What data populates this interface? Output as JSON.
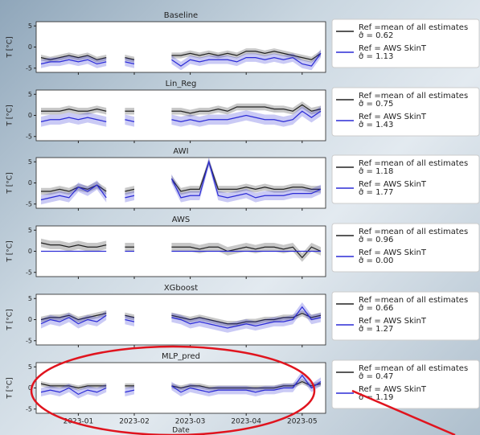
{
  "chart_data": [
    {
      "type": "line",
      "title": "Baseline",
      "ylabel": "T [°C]",
      "ylim": [
        -6,
        6
      ],
      "yticks": [
        -5,
        0,
        5
      ],
      "series": [
        {
          "name": "Ref =mean of all estimates",
          "stat": "σ̂ = 0.62",
          "color": "#222222",
          "band": 0.7,
          "values": [
            -2.5,
            -3,
            -2.5,
            -2,
            -2.5,
            -2,
            -3,
            -2.5,
            null,
            -2.5,
            -3,
            null,
            -2.5,
            null,
            -2,
            -2,
            -1.5,
            -2,
            -1.5,
            -2,
            -1.5,
            -2,
            -1,
            -1,
            -1.5,
            -1,
            -1.5,
            -2,
            -2.5,
            -3,
            -1.5
          ]
        },
        {
          "name": "Ref = AWS SkinT",
          "stat": "σ̂ = 1.13",
          "color": "#2b2bd6",
          "band": 1,
          "values": [
            -4,
            -3.5,
            -3.5,
            -3,
            -3.5,
            -3,
            -4,
            -3.5,
            null,
            -3.5,
            -4,
            null,
            -3.5,
            null,
            -3,
            -4.5,
            -3,
            -3.5,
            -3,
            -3,
            -3,
            -3.5,
            -2.5,
            -2.5,
            -3,
            -2.5,
            -3,
            -2.5,
            -4,
            -4.5,
            -1.5
          ]
        }
      ]
    },
    {
      "type": "line",
      "title": "Lin_Reg",
      "ylabel": "T [°C]",
      "ylim": [
        -6,
        6
      ],
      "yticks": [
        -5,
        0,
        5
      ],
      "series": [
        {
          "name": "Ref =mean of all estimates",
          "stat": "σ̂ = 0.75",
          "color": "#222222",
          "band": 0.8,
          "values": [
            1,
            1,
            1,
            1.5,
            1,
            1,
            1.5,
            1,
            null,
            1,
            1,
            null,
            1,
            null,
            1,
            1,
            0.5,
            1,
            1,
            1.5,
            1,
            2,
            2,
            2,
            2,
            1.5,
            1.5,
            1,
            2.5,
            1,
            1.5
          ]
        },
        {
          "name": "Ref = AWS SkinT",
          "stat": "σ̂ = 1.43",
          "color": "#2b2bd6",
          "band": 1.2,
          "values": [
            -1.5,
            -1,
            -1,
            -0.5,
            -1,
            -0.5,
            -1,
            -1.5,
            null,
            -1,
            -1.5,
            null,
            -1,
            null,
            -1,
            -1.5,
            -1,
            -1.5,
            -1,
            -1,
            -1,
            -0.5,
            0,
            -0.5,
            -1,
            -1,
            -1.5,
            -1,
            1,
            -0.5,
            1
          ]
        }
      ]
    },
    {
      "type": "line",
      "title": "AWI",
      "ylabel": "T [°C]",
      "ylim": [
        -6,
        6
      ],
      "yticks": [
        -5,
        0,
        5
      ],
      "series": [
        {
          "name": "Ref =mean of all estimates",
          "stat": "σ̂ = 1.18",
          "color": "#222222",
          "band": 0.8,
          "values": [
            -2,
            -2,
            -1.5,
            -2,
            -1,
            -1.5,
            -0.5,
            -2,
            null,
            -2,
            -1.5,
            null,
            -2,
            null,
            1,
            -2,
            -1.5,
            -1.5,
            5,
            -1.5,
            -1.5,
            -1.5,
            -1,
            -1.5,
            -1,
            -1.5,
            -1.5,
            -1,
            -1,
            -1.5,
            -1.5
          ]
        },
        {
          "name": "Ref = AWS SkinT",
          "stat": "σ̂ = 1.77",
          "color": "#2b2bd6",
          "band": 1.1,
          "values": [
            -4,
            -3.5,
            -3,
            -3.5,
            -1,
            -2,
            -0.5,
            -3.5,
            null,
            -3.5,
            -3,
            null,
            -3,
            null,
            1,
            -3.5,
            -3,
            -3,
            5,
            -3,
            -3.5,
            -3,
            -2.5,
            -3.5,
            -3,
            -3,
            -3,
            -2.5,
            -2.5,
            -2.5,
            -1.5
          ]
        }
      ]
    },
    {
      "type": "line",
      "title": "AWS",
      "ylabel": "T [°C]",
      "ylim": [
        -6,
        6
      ],
      "yticks": [
        -5,
        0,
        5
      ],
      "series": [
        {
          "name": "Ref =mean of all estimates",
          "stat": "σ̂ = 0.96",
          "color": "#222222",
          "band": 1,
          "values": [
            2,
            1.5,
            1.5,
            1,
            1.5,
            1,
            1,
            1.5,
            null,
            1,
            1,
            null,
            1,
            null,
            1,
            1,
            1,
            0.5,
            1,
            1,
            0,
            0.5,
            1,
            0.5,
            1,
            1,
            0.5,
            1,
            -1.5,
            1,
            0
          ]
        },
        {
          "name": "Ref = AWS SkinT",
          "stat": "σ̂ = 0.00",
          "color": "#2b2bd6",
          "band": 0,
          "values": [
            0,
            0,
            0,
            0,
            0,
            0,
            0,
            0,
            null,
            0,
            0,
            null,
            0,
            null,
            0,
            0,
            0,
            0,
            0,
            0,
            0,
            0,
            0,
            0,
            0,
            0,
            0,
            0,
            0,
            0,
            0
          ]
        }
      ]
    },
    {
      "type": "line",
      "title": "XGboost",
      "ylabel": "T [°C]",
      "ylim": [
        -6,
        6
      ],
      "yticks": [
        -5,
        0,
        5
      ],
      "series": [
        {
          "name": "Ref =mean of all estimates",
          "stat": "σ̂ = 0.66",
          "color": "#222222",
          "band": 0.7,
          "values": [
            0,
            0.5,
            0.5,
            1,
            0,
            0.5,
            1,
            1.5,
            null,
            1,
            0.5,
            null,
            1,
            null,
            1,
            0.5,
            0,
            0.5,
            0,
            -0.5,
            -1,
            -1,
            -0.5,
            -0.5,
            0,
            0,
            0.5,
            0.5,
            1.5,
            0.5,
            1
          ]
        },
        {
          "name": "Ref = AWS SkinT",
          "stat": "σ̂ = 1.27",
          "color": "#2b2bd6",
          "band": 1.1,
          "values": [
            -1,
            0,
            -0.5,
            0.5,
            -1,
            0,
            -0.5,
            1,
            null,
            0,
            -0.5,
            null,
            0.5,
            null,
            0.5,
            0,
            -1,
            -0.5,
            -1,
            -1.5,
            -2,
            -1.5,
            -1,
            -1.5,
            -1,
            -0.5,
            -0.5,
            0,
            3,
            0,
            0.5
          ]
        }
      ]
    },
    {
      "type": "line",
      "title": "MLP_pred",
      "ylabel": "T [°C]",
      "xlabel": "Date",
      "ylim": [
        -6,
        6
      ],
      "yticks": [
        -5,
        0,
        5
      ],
      "categories": [
        null,
        null,
        null,
        null,
        "2023-01",
        null,
        null,
        null,
        null,
        null,
        "2023-02",
        null,
        null,
        null,
        null,
        null,
        "2023-03",
        null,
        null,
        null,
        null,
        null,
        "2023-04",
        null,
        null,
        null,
        null,
        null,
        "2023-05",
        null,
        null
      ],
      "series": [
        {
          "name": "Ref =mean of all estimates",
          "stat": "σ̂ = 0.47",
          "color": "#222222",
          "band": 0.6,
          "values": [
            1,
            0.5,
            0.5,
            0.5,
            0,
            0.5,
            0.5,
            0.5,
            null,
            0.5,
            0.5,
            null,
            0.5,
            null,
            0.5,
            0,
            0.5,
            0.5,
            0,
            0,
            0,
            0,
            0,
            0,
            0,
            0,
            0.5,
            0.5,
            1.5,
            0.5,
            1
          ]
        },
        {
          "name": "Ref = AWS SkinT",
          "stat": "σ̂ = 1.19",
          "color": "#2b2bd6",
          "band": 1,
          "values": [
            -1,
            -0.5,
            -1,
            0,
            -1.5,
            -0.5,
            -1,
            0,
            null,
            -1,
            -0.5,
            null,
            0,
            null,
            0.5,
            -1,
            0,
            -0.5,
            -1,
            -0.5,
            -0.5,
            -0.5,
            -0.5,
            -1,
            -0.5,
            -0.5,
            0,
            0,
            3,
            0,
            1.5
          ]
        }
      ]
    }
  ]
}
